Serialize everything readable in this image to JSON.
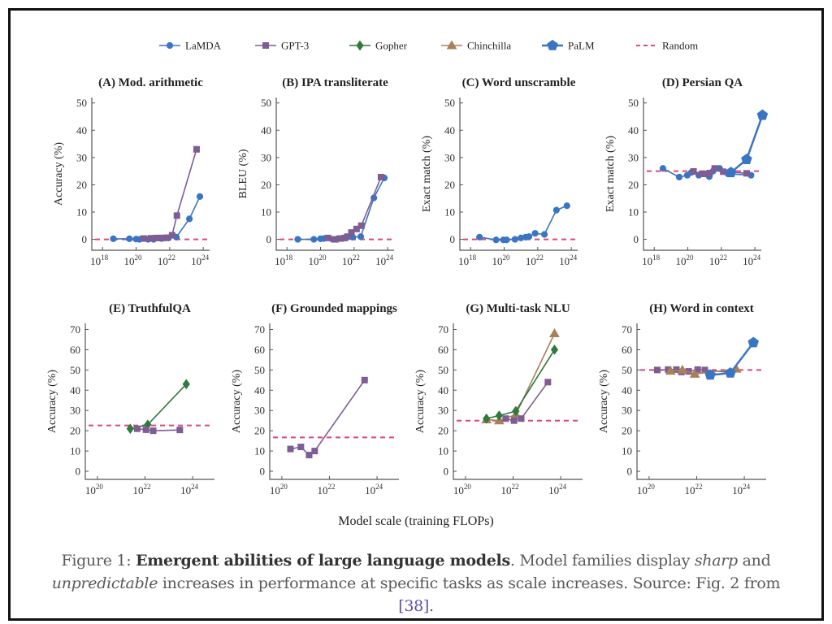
{
  "legend": [
    {
      "name": "LaMDA",
      "color": "#3a75c4",
      "marker": "circle"
    },
    {
      "name": "GPT-3",
      "color": "#7e5c94",
      "marker": "square"
    },
    {
      "name": "Gopher",
      "color": "#2f7a3c",
      "marker": "diamond"
    },
    {
      "name": "Chinchilla",
      "color": "#a88158",
      "marker": "triangle"
    },
    {
      "name": "PaLM",
      "color": "#3a75c4",
      "marker": "pentagon"
    },
    {
      "name": "Random",
      "color": "#e0457b",
      "marker": "dashed-line"
    }
  ],
  "shared_xlabel": "Model scale (training FLOPs)",
  "caption": {
    "prefix": "Figure 1: ",
    "bold": "Emergent abilities of large language models",
    "part1": ". Model families display ",
    "italic1": "sharp",
    "part2": " and ",
    "italic2": "unpredictable",
    "part3": " increases in performance at specific tasks as scale increases. Source: Fig. 2 from ",
    "link": "[38]",
    "end": "."
  },
  "chart_data": [
    {
      "type": "line",
      "title": "(A) Mod. arithmetic",
      "ylabel": "Accuracy (%)",
      "xscale": "log",
      "xticks": [
        "10^18",
        "10^20",
        "10^22",
        "10^24"
      ],
      "yticks": [
        0,
        10,
        20,
        30,
        40,
        50
      ],
      "ylim": [
        -4,
        52
      ],
      "xlim": [
        2.3e+17,
        2.4e+24
      ],
      "random": 0,
      "series": [
        {
          "name": "LaMDA",
          "x": [
            4.4e+18,
            4e+19,
            1e+20,
            1.6e+20,
            5.2e+20,
            1.1e+21,
            3.3e+21,
            8.3e+21,
            2.5e+22,
            1.5e+23,
            6.3e+23
          ],
          "y": [
            0.2,
            0.2,
            0.1,
            0,
            0,
            0,
            0.3,
            0.5,
            0.8,
            7.5,
            15.7
          ]
        },
        {
          "name": "GPT-3",
          "x": [
            2.8e+20,
            7.6e+20,
            1.6e+21,
            2.8e+21,
            4e+21,
            6.9e+21,
            1.4e+22,
            2.7e+22,
            4e+23
          ],
          "y": [
            0.3,
            0.4,
            0.5,
            0.5,
            0.5,
            0.6,
            1.5,
            8.7,
            33
          ]
        }
      ]
    },
    {
      "type": "line",
      "title": "(B) IPA transliterate",
      "ylabel": "BLEU (%)",
      "xscale": "log",
      "xticks": [
        "10^18",
        "10^20",
        "10^22",
        "10^24"
      ],
      "yticks": [
        0,
        10,
        20,
        30,
        40,
        50
      ],
      "ylim": [
        -4,
        52
      ],
      "xlim": [
        2.3e+17,
        2.4e+24
      ],
      "random": 0,
      "series": [
        {
          "name": "LaMDA",
          "x": [
            4.4e+18,
            4e+19,
            1e+20,
            1.6e+20,
            5.2e+20,
            1.1e+21,
            3.3e+21,
            8.3e+21,
            2.5e+22,
            1.5e+23,
            6.3e+23
          ],
          "y": [
            0,
            0,
            0.2,
            0.3,
            0,
            0.3,
            0.8,
            0.8,
            1,
            15.2,
            22.5
          ]
        },
        {
          "name": "GPT-3",
          "x": [
            2.8e+20,
            7.6e+20,
            1.6e+21,
            2.8e+21,
            4e+21,
            6.9e+21,
            1.4e+22,
            2.7e+22,
            4e+23
          ],
          "y": [
            0.5,
            0,
            0.3,
            0.5,
            1,
            2.5,
            3.8,
            5,
            22.8
          ]
        }
      ]
    },
    {
      "type": "line",
      "title": "(C) Word unscramble",
      "ylabel": "Exact match (%)",
      "xscale": "log",
      "xticks": [
        "10^18",
        "10^20",
        "10^22",
        "10^24"
      ],
      "yticks": [
        0,
        10,
        20,
        30,
        40,
        50
      ],
      "ylim": [
        -4,
        52
      ],
      "xlim": [
        2.3e+17,
        2.4e+24
      ],
      "random": 0,
      "series": [
        {
          "name": "LaMDA",
          "x": [
            3.4e+18,
            3.3e+19,
            9e+19,
            1.4e+20,
            4.4e+20,
            1e+21,
            1.9e+21,
            3e+21,
            7e+21,
            2.5e+22,
            1.3e+23,
            5.5e+23
          ],
          "y": [
            0.8,
            -0.2,
            -0.2,
            -0.2,
            0,
            0.5,
            0.8,
            1,
            2.2,
            1.8,
            10.7,
            12.3
          ]
        }
      ]
    },
    {
      "type": "line",
      "title": "(D) Persian QA",
      "ylabel": "Exact match (%)",
      "xscale": "log",
      "xticks": [
        "10^18",
        "10^20",
        "10^22",
        "10^24"
      ],
      "yticks": [
        0,
        10,
        20,
        30,
        40,
        50
      ],
      "ylim": [
        -4,
        52
      ],
      "xlim": [
        2.3e+17,
        2.4e+24
      ],
      "random": 25,
      "series": [
        {
          "name": "LaMDA",
          "x": [
            3.3e+18,
            3.1e+19,
            9.3e+19,
            1.6e+20,
            4.5e+20,
            1.9e+21,
            3.2e+21,
            7.9e+21,
            2.5e+22,
            5.9e+23
          ],
          "y": [
            26,
            22.8,
            23.5,
            24.5,
            23.5,
            23,
            25,
            26,
            24,
            23.5
          ]
        },
        {
          "name": "GPT-3",
          "x": [
            2.2e+20,
            6.9e+20,
            1.3e+21,
            2e+21,
            4e+21,
            1.3e+22,
            3.2e+23
          ],
          "y": [
            24.9,
            24,
            24,
            24.3,
            26,
            24.8,
            24.2
          ]
        },
        {
          "name": "PaLM",
          "x": [
            3.7e+22,
            3.2e+23,
            2.8e+24
          ],
          "y": [
            24.5,
            29.3,
            45.5
          ]
        }
      ]
    },
    {
      "type": "line",
      "title": "(E) TruthfulQA",
      "ylabel": "Accuracy (%)",
      "xscale": "log",
      "xticks": [
        "10^20",
        "10^22",
        "10^24"
      ],
      "yticks": [
        0,
        10,
        20,
        30,
        40,
        50,
        60,
        70
      ],
      "ylim": [
        -4,
        73
      ],
      "xlim": [
        3.1e+19,
        8.3e+24
      ],
      "random": 22.6,
      "series": [
        {
          "name": "Gopher",
          "x": [
            2.4e+21,
            1.3e+22,
            5.4e+23
          ],
          "y": [
            21,
            23,
            43
          ]
        },
        {
          "name": "GPT-3",
          "x": [
            4.7e+21,
            1.1e+22,
            2.2e+22,
            2.9e+23
          ],
          "y": [
            21,
            20.5,
            20,
            20.4
          ]
        }
      ]
    },
    {
      "type": "line",
      "title": "(F) Grounded mappings",
      "ylabel": "Accuracy (%)",
      "xscale": "log",
      "xticks": [
        "10^20",
        "10^22",
        "10^24"
      ],
      "yticks": [
        0,
        10,
        20,
        30,
        40,
        50,
        60,
        70
      ],
      "ylim": [
        -4,
        73
      ],
      "xlim": [
        3.1e+19,
        8.3e+24
      ],
      "random": 16.7,
      "series": [
        {
          "name": "GPT-3",
          "x": [
            2.3e+20,
            6.3e+20,
            1.4e+21,
            2.4e+21,
            3e+23
          ],
          "y": [
            11,
            12,
            8,
            10,
            45
          ]
        }
      ]
    },
    {
      "type": "line",
      "title": "(G) Multi-task NLU",
      "ylabel": "Accuracy (%)",
      "xscale": "log",
      "xticks": [
        "10^20",
        "10^22",
        "10^24"
      ],
      "yticks": [
        0,
        10,
        20,
        30,
        40,
        50,
        60,
        70
      ],
      "ylim": [
        -4,
        73
      ],
      "xlim": [
        3.1e+19,
        8.3e+24
      ],
      "random": 25,
      "series": [
        {
          "name": "Chinchilla",
          "x": [
            7.6e+20,
            2.6e+21,
            1.3e+22,
            5.5e+23
          ],
          "y": [
            25.5,
            25,
            28,
            68
          ]
        },
        {
          "name": "Gopher",
          "x": [
            7.6e+20,
            2.6e+21,
            1.3e+22,
            5.5e+23
          ],
          "y": [
            26,
            27.5,
            29.7,
            60
          ]
        },
        {
          "name": "GPT-3",
          "x": [
            4.9e+21,
            1.1e+22,
            2.2e+22,
            2.9e+23
          ],
          "y": [
            26,
            25,
            26,
            44
          ]
        }
      ]
    },
    {
      "type": "line",
      "title": "(H) Word in context",
      "ylabel": "Accuracy (%)",
      "xscale": "log",
      "xticks": [
        "10^20",
        "10^22",
        "10^24"
      ],
      "yticks": [
        0,
        10,
        20,
        30,
        40,
        50,
        60,
        70
      ],
      "ylim": [
        -4,
        73
      ],
      "xlim": [
        3.1e+19,
        8.3e+24
      ],
      "random": 50,
      "series": [
        {
          "name": "GPT-3",
          "x": [
            2.2e+20,
            6.3e+20,
            1.4e+21,
            2.3e+21,
            4.6e+21,
            1.1e+22,
            2.2e+22,
            2.7e+23
          ],
          "y": [
            50,
            50.2,
            50.2,
            49,
            49.3,
            50.2,
            50,
            48.8
          ]
        },
        {
          "name": "Chinchilla",
          "x": [
            7.9e+20,
            2.5e+21,
            8.3e+21,
            4.6e+23
          ],
          "y": [
            49.5,
            50,
            48,
            50.5
          ]
        },
        {
          "name": "PaLM",
          "x": [
            3.7e+22,
            2.6e+23,
            2.4e+24
          ],
          "y": [
            47.5,
            48.5,
            63.5
          ]
        }
      ]
    }
  ]
}
